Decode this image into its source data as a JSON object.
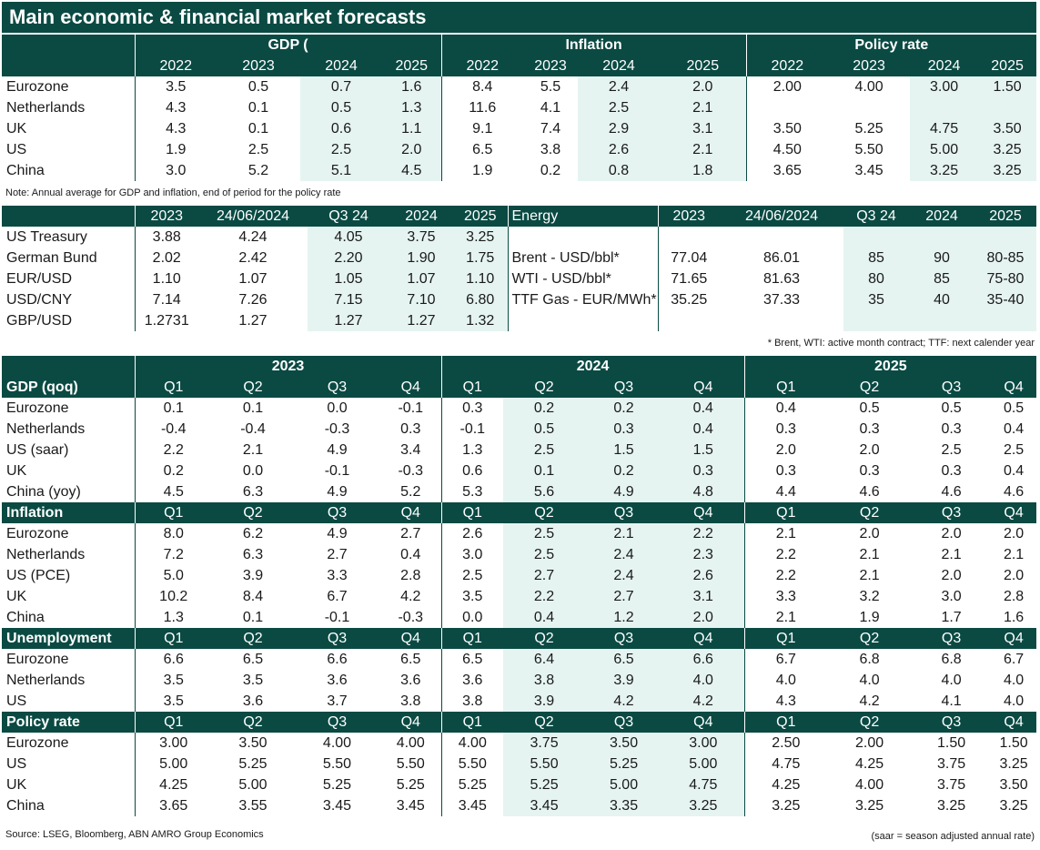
{
  "title": "Main economic & financial market forecasts",
  "t1": {
    "groups": [
      "GDP (",
      "Inflation",
      "Policy rate"
    ],
    "years": [
      "2022",
      "2023",
      "2024",
      "2025",
      "2022",
      "2023",
      "2024",
      "2025",
      "2022",
      "2023",
      "2024",
      "2025"
    ],
    "rows": [
      {
        "label": "Eurozone",
        "v": [
          "3.5",
          "0.5",
          "0.7",
          "1.6",
          "8.4",
          "5.5",
          "2.4",
          "2.0",
          "2.00",
          "4.00",
          "3.00",
          "1.50"
        ]
      },
      {
        "label": "Netherlands",
        "v": [
          "4.3",
          "0.1",
          "0.5",
          "1.3",
          "11.6",
          "4.1",
          "2.5",
          "2.1",
          "",
          "",
          "",
          ""
        ]
      },
      {
        "label": "UK",
        "v": [
          "4.3",
          "0.1",
          "0.6",
          "1.1",
          "9.1",
          "7.4",
          "2.9",
          "3.1",
          "3.50",
          "5.25",
          "4.75",
          "3.50"
        ]
      },
      {
        "label": "US",
        "v": [
          "1.9",
          "2.5",
          "2.5",
          "2.0",
          "6.5",
          "3.8",
          "2.6",
          "2.1",
          "4.50",
          "5.50",
          "5.00",
          "3.25"
        ]
      },
      {
        "label": "China",
        "v": [
          "3.0",
          "5.2",
          "5.1",
          "4.5",
          "1.9",
          "0.2",
          "0.8",
          "1.8",
          "3.65",
          "3.45",
          "3.25",
          "3.25"
        ]
      }
    ],
    "note": "Note: Annual average for GDP and inflation, end of period for the policy rate"
  },
  "t2": {
    "cols": [
      "2023",
      "24/06/2024",
      "Q3 24",
      "2024",
      "2025"
    ],
    "energy_title": "Energy",
    "rows": [
      {
        "label": "US Treasury",
        "v": [
          "3.88",
          "4.24",
          "4.05",
          "3.75",
          "3.25"
        ],
        "e": "",
        "ev": [
          "",
          "",
          "",
          "",
          ""
        ]
      },
      {
        "label": "German Bund",
        "v": [
          "2.02",
          "2.42",
          "2.20",
          "1.90",
          "1.75"
        ],
        "e": "Brent - USD/bbl*",
        "ev": [
          "77.04",
          "86.01",
          "85",
          "90",
          "80-85"
        ]
      },
      {
        "label": "EUR/USD",
        "v": [
          "1.10",
          "1.07",
          "1.05",
          "1.07",
          "1.10"
        ],
        "e": "WTI - USD/bbl*",
        "ev": [
          "71.65",
          "81.63",
          "80",
          "85",
          "75-80"
        ]
      },
      {
        "label": "USD/CNY",
        "v": [
          "7.14",
          "7.26",
          "7.15",
          "7.10",
          "6.80"
        ],
        "e": "TTF Gas - EUR/MWh*",
        "ev": [
          "35.25",
          "37.33",
          "35",
          "40",
          "35-40"
        ]
      },
      {
        "label": "GBP/USD",
        "v": [
          "1.2731",
          "1.27",
          "1.27",
          "1.27",
          "1.32"
        ],
        "e": "",
        "ev": [
          "",
          "",
          "",
          "",
          ""
        ]
      }
    ],
    "note": "* Brent, WTI: active month contract; TTF: next calender year"
  },
  "t3": {
    "years": [
      "2023",
      "2024",
      "2025"
    ],
    "quarters": [
      "Q1",
      "Q2",
      "Q3",
      "Q4",
      "Q1",
      "Q2",
      "Q3",
      "Q4",
      "Q1",
      "Q2",
      "Q3",
      "Q4"
    ],
    "sections": [
      {
        "title": "GDP (qoq)",
        "rows": [
          {
            "label": "Eurozone",
            "v": [
              "0.1",
              "0.1",
              "0.0",
              "-0.1",
              "0.3",
              "0.2",
              "0.2",
              "0.4",
              "0.4",
              "0.5",
              "0.5",
              "0.5"
            ]
          },
          {
            "label": "Netherlands",
            "v": [
              "-0.4",
              "-0.4",
              "-0.3",
              "0.3",
              "-0.1",
              "0.5",
              "0.3",
              "0.4",
              "0.3",
              "0.3",
              "0.3",
              "0.4"
            ]
          },
          {
            "label": "US (saar)",
            "v": [
              "2.2",
              "2.1",
              "4.9",
              "3.4",
              "1.3",
              "2.5",
              "1.5",
              "1.5",
              "2.0",
              "2.0",
              "2.5",
              "2.5"
            ]
          },
          {
            "label": "UK",
            "v": [
              "0.2",
              "0.0",
              "-0.1",
              "-0.3",
              "0.6",
              "0.1",
              "0.2",
              "0.3",
              "0.3",
              "0.3",
              "0.3",
              "0.4"
            ]
          },
          {
            "label": "China (yoy)",
            "v": [
              "4.5",
              "6.3",
              "4.9",
              "5.2",
              "5.3",
              "5.6",
              "4.9",
              "4.8",
              "4.4",
              "4.6",
              "4.6",
              "4.6"
            ]
          }
        ]
      },
      {
        "title": "Inflation",
        "rows": [
          {
            "label": "Eurozone",
            "v": [
              "8.0",
              "6.2",
              "4.9",
              "2.7",
              "2.6",
              "2.5",
              "2.1",
              "2.2",
              "2.1",
              "2.0",
              "2.0",
              "2.0"
            ]
          },
          {
            "label": "Netherlands",
            "v": [
              "7.2",
              "6.3",
              "2.7",
              "0.4",
              "3.0",
              "2.5",
              "2.4",
              "2.3",
              "2.2",
              "2.1",
              "2.1",
              "2.1"
            ]
          },
          {
            "label": "US (PCE)",
            "v": [
              "5.0",
              "3.9",
              "3.3",
              "2.8",
              "2.5",
              "2.7",
              "2.4",
              "2.6",
              "2.2",
              "2.1",
              "2.0",
              "2.0"
            ]
          },
          {
            "label": "UK",
            "v": [
              "10.2",
              "8.4",
              "6.7",
              "4.2",
              "3.5",
              "2.2",
              "2.7",
              "3.1",
              "3.3",
              "3.2",
              "3.0",
              "2.8"
            ]
          },
          {
            "label": "China",
            "v": [
              "1.3",
              "0.1",
              "-0.1",
              "-0.3",
              "0.0",
              "0.4",
              "1.2",
              "2.0",
              "2.1",
              "1.9",
              "1.7",
              "1.6"
            ]
          }
        ]
      },
      {
        "title": "Unemployment",
        "rows": [
          {
            "label": "Eurozone",
            "v": [
              "6.6",
              "6.5",
              "6.6",
              "6.5",
              "6.5",
              "6.4",
              "6.5",
              "6.6",
              "6.7",
              "6.8",
              "6.8",
              "6.7"
            ]
          },
          {
            "label": "Netherlands",
            "v": [
              "3.5",
              "3.5",
              "3.6",
              "3.6",
              "3.6",
              "3.8",
              "3.9",
              "4.0",
              "4.0",
              "4.0",
              "4.0",
              "4.0"
            ]
          },
          {
            "label": "US",
            "v": [
              "3.5",
              "3.6",
              "3.7",
              "3.8",
              "3.8",
              "3.9",
              "4.2",
              "4.2",
              "4.3",
              "4.2",
              "4.1",
              "4.0"
            ]
          }
        ]
      },
      {
        "title": "Policy rate",
        "rows": [
          {
            "label": "Eurozone",
            "v": [
              "3.00",
              "3.50",
              "4.00",
              "4.00",
              "4.00",
              "3.75",
              "3.50",
              "3.00",
              "2.50",
              "2.00",
              "1.50",
              "1.50"
            ]
          },
          {
            "label": "US",
            "v": [
              "5.00",
              "5.25",
              "5.50",
              "5.50",
              "5.50",
              "5.50",
              "5.25",
              "5.00",
              "4.75",
              "4.25",
              "3.75",
              "3.25"
            ]
          },
          {
            "label": "UK",
            "v": [
              "4.25",
              "5.00",
              "5.25",
              "5.25",
              "5.25",
              "5.25",
              "5.00",
              "4.75",
              "4.25",
              "4.00",
              "3.75",
              "3.50"
            ]
          },
          {
            "label": "China",
            "v": [
              "3.65",
              "3.55",
              "3.45",
              "3.45",
              "3.45",
              "3.45",
              "3.35",
              "3.25",
              "3.25",
              "3.25",
              "3.25",
              "3.25"
            ]
          }
        ]
      }
    ]
  },
  "footer": {
    "source": "Source: LSEG, Bloomberg, ABN AMRO Group Economics",
    "saar": "(saar = season adjusted annual rate)"
  }
}
